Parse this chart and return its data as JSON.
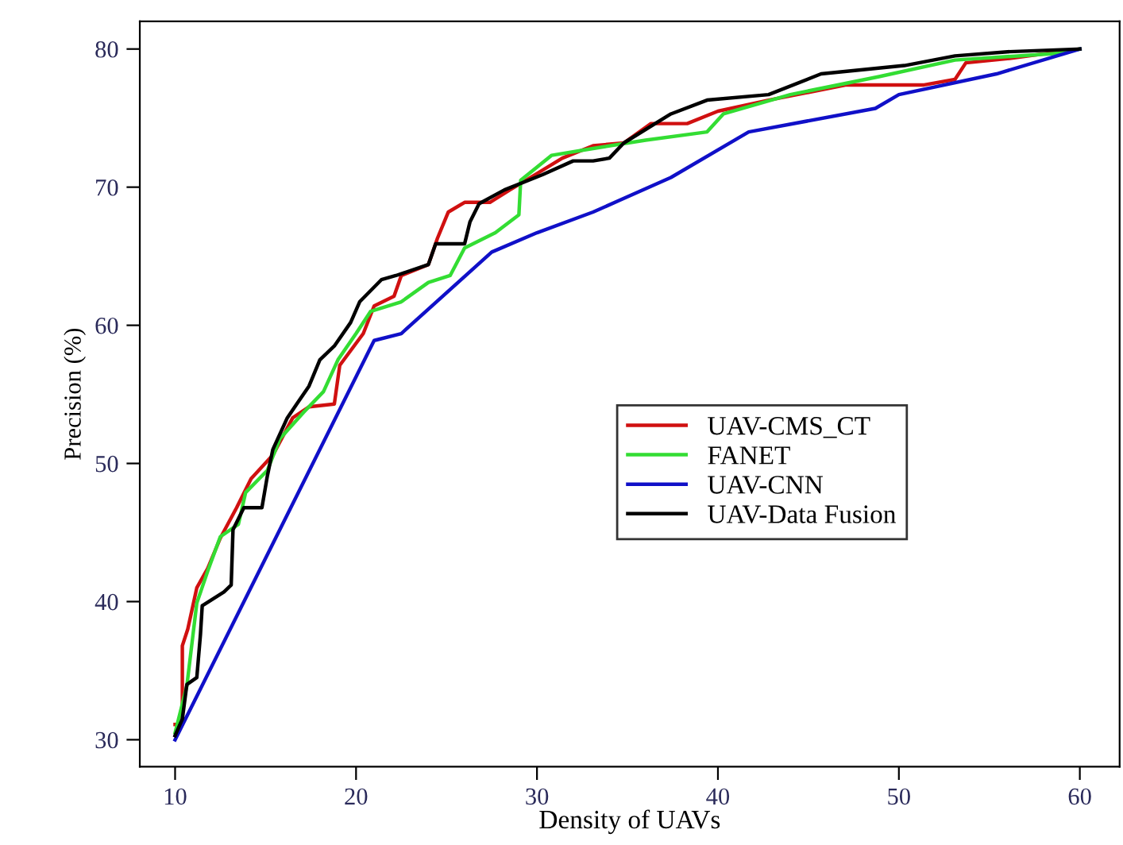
{
  "chart_data": {
    "type": "line",
    "xlabel": "Density of UAVs",
    "ylabel": "Precision (%)",
    "xlim": [
      8.05,
      62.2
    ],
    "ylim": [
      28.05,
      82.0
    ],
    "xticks": [
      10,
      20,
      30,
      40,
      50,
      60
    ],
    "yticks": [
      30,
      40,
      50,
      60,
      70,
      80
    ],
    "grid": false,
    "legend": "center",
    "line_style": "solid",
    "series": [
      {
        "name": "UAV-CMS_CT",
        "color": "#d01010",
        "x": [
          10,
          10.4,
          10.4,
          10.7,
          11.2,
          11.8,
          12.5,
          13.4,
          14.2,
          15.4,
          16.5,
          17.4,
          18.8,
          19.1,
          20.4,
          21.0,
          22.1,
          22.5,
          24.0,
          24.5,
          25.1,
          26.0,
          27.4,
          28.5,
          29.4,
          31.4,
          33.1,
          34.8,
          36.3,
          38.3,
          40.0,
          42.8,
          47.1,
          51.4,
          53.1,
          53.7,
          56.0,
          60
        ],
        "values": [
          31.1,
          31.1,
          36.8,
          38.0,
          41.0,
          42.4,
          44.6,
          46.8,
          48.9,
          50.6,
          53.3,
          54.1,
          54.3,
          57.1,
          59.4,
          61.4,
          62.1,
          63.6,
          64.4,
          66.3,
          68.2,
          68.9,
          68.9,
          69.8,
          70.5,
          72.1,
          73.0,
          73.2,
          74.6,
          74.6,
          75.5,
          76.3,
          77.4,
          77.4,
          77.8,
          79.0,
          79.3,
          80
        ]
      },
      {
        "name": "FANET",
        "color": "#33dd33",
        "x": [
          10,
          10.65,
          11.2,
          11.8,
          12.5,
          13.5,
          13.9,
          15.1,
          15.8,
          17.1,
          18.2,
          19.0,
          20.0,
          20.8,
          22.5,
          24.0,
          25.2,
          26.0,
          27.7,
          29.0,
          29.1,
          30.8,
          33.1,
          36.0,
          39.4,
          40.3,
          44.0,
          48.9,
          53.1,
          58.9,
          60
        ],
        "values": [
          30.5,
          33.9,
          39.9,
          42.2,
          44.7,
          45.6,
          47.9,
          49.5,
          51.8,
          53.7,
          55.2,
          57.5,
          59.4,
          61.0,
          61.7,
          63.1,
          63.6,
          65.6,
          66.7,
          68.0,
          70.5,
          72.3,
          72.8,
          73.4,
          74.0,
          75.3,
          76.7,
          78.0,
          79.2,
          79.7,
          80
        ]
      },
      {
        "name": "UAV-CNN",
        "color": "#1010c8",
        "x": [
          10,
          21.0,
          22.5,
          27.5,
          30.0,
          33.1,
          37.4,
          41.7,
          48.7,
          50.0,
          55.4,
          60
        ],
        "values": [
          30,
          58.9,
          59.4,
          65.3,
          66.7,
          68.2,
          70.7,
          74.0,
          75.7,
          76.7,
          78.2,
          80
        ]
      },
      {
        "name": "UAV-Data Fusion",
        "color": "#000000",
        "x": [
          10,
          10.4,
          10.65,
          11.2,
          11.4,
          11.5,
          12.7,
          13.1,
          13.2,
          13.8,
          14.8,
          15.1,
          15.4,
          16.2,
          17.4,
          18.0,
          18.8,
          19.7,
          20.2,
          21.4,
          22.2,
          24.0,
          24.4,
          26.0,
          26.3,
          26.8,
          28.2,
          30.3,
          32.0,
          33.1,
          34.0,
          34.8,
          37.4,
          39.4,
          42.8,
          45.7,
          50.3,
          53.1,
          56.0,
          60
        ],
        "values": [
          30.3,
          31.5,
          34.0,
          34.5,
          37.6,
          39.7,
          40.7,
          41.2,
          45.2,
          46.8,
          46.8,
          49.1,
          51.0,
          53.3,
          55.6,
          57.5,
          58.5,
          60.2,
          61.7,
          63.3,
          63.6,
          64.4,
          65.9,
          65.9,
          67.5,
          68.8,
          69.8,
          70.9,
          71.9,
          71.9,
          72.1,
          73.2,
          75.3,
          76.3,
          76.7,
          78.2,
          78.8,
          79.5,
          79.8,
          80
        ]
      }
    ]
  }
}
